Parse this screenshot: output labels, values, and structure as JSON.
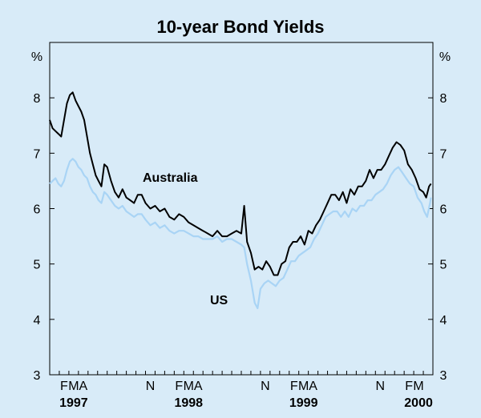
{
  "chart_data": {
    "type": "line",
    "title": "10-year Bond Yields",
    "y_unit_left": "%",
    "y_unit_right": "%",
    "ylim": [
      3,
      9
    ],
    "yticks": [
      3,
      4,
      5,
      6,
      7,
      8
    ],
    "yticks_right": [
      3,
      4,
      5,
      6,
      7,
      8
    ],
    "grid": false,
    "legend": "inline labels",
    "x_month_labels": [
      "F",
      "M",
      "A",
      "N",
      "F",
      "M",
      "A",
      "N",
      "F",
      "M",
      "A",
      "N",
      "F",
      "M"
    ],
    "x_year_labels": [
      {
        "label": "1997",
        "month_index": 2
      },
      {
        "label": "1998",
        "month_index": 14
      },
      {
        "label": "1999",
        "month_index": 26
      },
      {
        "label": "2000",
        "month_index": 38
      }
    ],
    "month_tick_index": [
      1,
      2,
      3,
      10,
      13,
      14,
      15,
      22,
      25,
      26,
      27,
      34,
      37,
      38
    ],
    "x_range_month_index": [
      0,
      40
    ],
    "series": [
      {
        "name": "Australia",
        "color": "#000000",
        "points": [
          [
            0.0,
            7.6
          ],
          [
            0.3,
            7.45
          ],
          [
            0.6,
            7.4
          ],
          [
            0.9,
            7.35
          ],
          [
            1.2,
            7.3
          ],
          [
            1.5,
            7.6
          ],
          [
            1.8,
            7.9
          ],
          [
            2.1,
            8.05
          ],
          [
            2.4,
            8.1
          ],
          [
            2.7,
            7.95
          ],
          [
            3.0,
            7.85
          ],
          [
            3.3,
            7.75
          ],
          [
            3.6,
            7.6
          ],
          [
            3.9,
            7.3
          ],
          [
            4.2,
            7.0
          ],
          [
            4.5,
            6.8
          ],
          [
            4.8,
            6.6
          ],
          [
            5.1,
            6.5
          ],
          [
            5.4,
            6.4
          ],
          [
            5.7,
            6.8
          ],
          [
            6.0,
            6.75
          ],
          [
            6.4,
            6.5
          ],
          [
            6.8,
            6.3
          ],
          [
            7.2,
            6.2
          ],
          [
            7.6,
            6.35
          ],
          [
            8.0,
            6.2
          ],
          [
            8.4,
            6.15
          ],
          [
            8.8,
            6.1
          ],
          [
            9.2,
            6.25
          ],
          [
            9.6,
            6.25
          ],
          [
            10.0,
            6.1
          ],
          [
            10.5,
            6.0
          ],
          [
            11.0,
            6.05
          ],
          [
            11.5,
            5.95
          ],
          [
            12.0,
            6.0
          ],
          [
            12.5,
            5.85
          ],
          [
            13.0,
            5.8
          ],
          [
            13.5,
            5.9
          ],
          [
            14.0,
            5.85
          ],
          [
            14.5,
            5.75
          ],
          [
            15.0,
            5.7
          ],
          [
            15.5,
            5.65
          ],
          [
            16.0,
            5.6
          ],
          [
            16.5,
            5.55
          ],
          [
            17.0,
            5.5
          ],
          [
            17.5,
            5.6
          ],
          [
            18.0,
            5.5
          ],
          [
            18.5,
            5.5
          ],
          [
            19.0,
            5.55
          ],
          [
            19.5,
            5.6
          ],
          [
            20.0,
            5.55
          ],
          [
            20.3,
            6.05
          ],
          [
            20.6,
            5.4
          ],
          [
            21.0,
            5.2
          ],
          [
            21.4,
            4.9
          ],
          [
            21.8,
            4.95
          ],
          [
            22.2,
            4.9
          ],
          [
            22.6,
            5.05
          ],
          [
            23.0,
            4.95
          ],
          [
            23.4,
            4.8
          ],
          [
            23.8,
            4.8
          ],
          [
            24.2,
            5.0
          ],
          [
            24.6,
            5.05
          ],
          [
            25.0,
            5.3
          ],
          [
            25.4,
            5.4
          ],
          [
            25.8,
            5.4
          ],
          [
            26.2,
            5.5
          ],
          [
            26.6,
            5.35
          ],
          [
            27.0,
            5.6
          ],
          [
            27.4,
            5.55
          ],
          [
            27.8,
            5.7
          ],
          [
            28.2,
            5.8
          ],
          [
            28.6,
            5.95
          ],
          [
            29.0,
            6.1
          ],
          [
            29.4,
            6.25
          ],
          [
            29.8,
            6.25
          ],
          [
            30.2,
            6.15
          ],
          [
            30.6,
            6.3
          ],
          [
            31.0,
            6.1
          ],
          [
            31.4,
            6.35
          ],
          [
            31.8,
            6.25
          ],
          [
            32.2,
            6.4
          ],
          [
            32.6,
            6.4
          ],
          [
            33.0,
            6.5
          ],
          [
            33.4,
            6.7
          ],
          [
            33.8,
            6.55
          ],
          [
            34.2,
            6.7
          ],
          [
            34.6,
            6.7
          ],
          [
            35.0,
            6.8
          ],
          [
            35.4,
            6.95
          ],
          [
            35.8,
            7.1
          ],
          [
            36.2,
            7.2
          ],
          [
            36.6,
            7.15
          ],
          [
            37.0,
            7.05
          ],
          [
            37.4,
            6.8
          ],
          [
            37.8,
            6.7
          ],
          [
            38.2,
            6.55
          ],
          [
            38.6,
            6.35
          ],
          [
            39.0,
            6.3
          ],
          [
            39.3,
            6.2
          ],
          [
            39.6,
            6.4
          ],
          [
            39.8,
            6.45
          ]
        ]
      },
      {
        "name": "US",
        "color": "#a9d4f5",
        "points": [
          [
            0.0,
            6.45
          ],
          [
            0.3,
            6.5
          ],
          [
            0.6,
            6.55
          ],
          [
            0.9,
            6.45
          ],
          [
            1.2,
            6.4
          ],
          [
            1.5,
            6.5
          ],
          [
            1.8,
            6.7
          ],
          [
            2.1,
            6.85
          ],
          [
            2.4,
            6.9
          ],
          [
            2.7,
            6.85
          ],
          [
            3.0,
            6.75
          ],
          [
            3.3,
            6.7
          ],
          [
            3.6,
            6.6
          ],
          [
            3.9,
            6.55
          ],
          [
            4.2,
            6.4
          ],
          [
            4.5,
            6.3
          ],
          [
            4.8,
            6.25
          ],
          [
            5.1,
            6.15
          ],
          [
            5.4,
            6.1
          ],
          [
            5.7,
            6.3
          ],
          [
            6.0,
            6.25
          ],
          [
            6.4,
            6.15
          ],
          [
            6.8,
            6.05
          ],
          [
            7.2,
            6.0
          ],
          [
            7.6,
            6.05
          ],
          [
            8.0,
            5.95
          ],
          [
            8.4,
            5.9
          ],
          [
            8.8,
            5.85
          ],
          [
            9.2,
            5.9
          ],
          [
            9.6,
            5.9
          ],
          [
            10.0,
            5.8
          ],
          [
            10.5,
            5.7
          ],
          [
            11.0,
            5.75
          ],
          [
            11.5,
            5.65
          ],
          [
            12.0,
            5.7
          ],
          [
            12.5,
            5.6
          ],
          [
            13.0,
            5.55
          ],
          [
            13.5,
            5.6
          ],
          [
            14.0,
            5.6
          ],
          [
            14.5,
            5.55
          ],
          [
            15.0,
            5.5
          ],
          [
            15.5,
            5.5
          ],
          [
            16.0,
            5.45
          ],
          [
            16.5,
            5.45
          ],
          [
            17.0,
            5.45
          ],
          [
            17.5,
            5.5
          ],
          [
            18.0,
            5.4
          ],
          [
            18.5,
            5.45
          ],
          [
            19.0,
            5.45
          ],
          [
            19.5,
            5.4
          ],
          [
            20.0,
            5.35
          ],
          [
            20.3,
            5.3
          ],
          [
            20.6,
            5.0
          ],
          [
            21.0,
            4.7
          ],
          [
            21.4,
            4.3
          ],
          [
            21.7,
            4.2
          ],
          [
            22.0,
            4.55
          ],
          [
            22.4,
            4.65
          ],
          [
            22.8,
            4.7
          ],
          [
            23.2,
            4.65
          ],
          [
            23.6,
            4.6
          ],
          [
            24.0,
            4.7
          ],
          [
            24.4,
            4.75
          ],
          [
            24.8,
            4.9
          ],
          [
            25.2,
            5.05
          ],
          [
            25.6,
            5.05
          ],
          [
            26.0,
            5.15
          ],
          [
            26.4,
            5.2
          ],
          [
            26.8,
            5.25
          ],
          [
            27.2,
            5.3
          ],
          [
            27.6,
            5.45
          ],
          [
            28.0,
            5.55
          ],
          [
            28.4,
            5.7
          ],
          [
            28.8,
            5.85
          ],
          [
            29.2,
            5.9
          ],
          [
            29.6,
            5.95
          ],
          [
            30.0,
            5.95
          ],
          [
            30.4,
            5.85
          ],
          [
            30.8,
            5.95
          ],
          [
            31.2,
            5.85
          ],
          [
            31.6,
            6.0
          ],
          [
            32.0,
            5.95
          ],
          [
            32.4,
            6.05
          ],
          [
            32.8,
            6.05
          ],
          [
            33.2,
            6.15
          ],
          [
            33.6,
            6.15
          ],
          [
            34.0,
            6.25
          ],
          [
            34.4,
            6.3
          ],
          [
            34.8,
            6.35
          ],
          [
            35.2,
            6.45
          ],
          [
            35.6,
            6.6
          ],
          [
            36.0,
            6.7
          ],
          [
            36.4,
            6.75
          ],
          [
            36.8,
            6.65
          ],
          [
            37.2,
            6.55
          ],
          [
            37.6,
            6.45
          ],
          [
            38.0,
            6.4
          ],
          [
            38.4,
            6.2
          ],
          [
            38.8,
            6.1
          ],
          [
            39.1,
            5.95
          ],
          [
            39.4,
            5.85
          ],
          [
            39.7,
            6.1
          ],
          [
            39.8,
            6.2
          ]
        ]
      }
    ]
  }
}
